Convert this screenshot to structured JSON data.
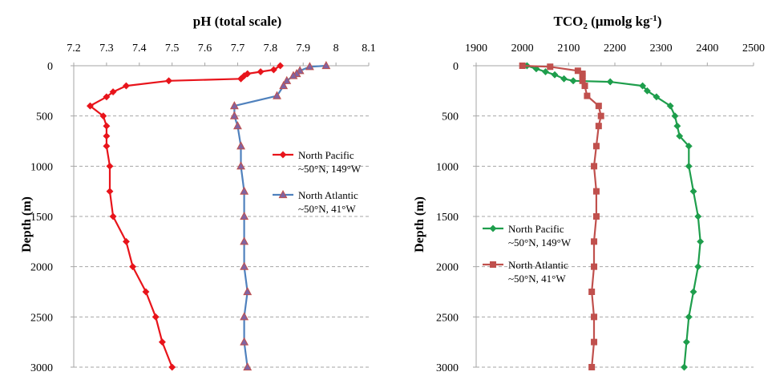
{
  "chart_data": [
    {
      "type": "line",
      "title": "pH (total scale)",
      "ylabel": "Depth (m)",
      "xlim": [
        7.2,
        8.1
      ],
      "xticks": [
        "7.2",
        "7.3",
        "7.4",
        "7.5",
        "7.6",
        "7.7",
        "7.8",
        "7.9",
        "8",
        "8.1"
      ],
      "ylim": [
        0,
        3000
      ],
      "yticks": [
        "0",
        "500",
        "1000",
        "1500",
        "2000",
        "2500",
        "3000"
      ],
      "x_axis_position": "top",
      "y_inverted": true,
      "grid": "horizontal dashed",
      "legend_position": "right-middle",
      "series": [
        {
          "name": "North Pacific",
          "name_line2": "~50°N, 149°W",
          "color": "#e8141b",
          "marker": "diamond",
          "points": [
            [
              7.83,
              0
            ],
            [
              7.81,
              40
            ],
            [
              7.77,
              60
            ],
            [
              7.73,
              80
            ],
            [
              7.72,
              100
            ],
            [
              7.71,
              130
            ],
            [
              7.49,
              150
            ],
            [
              7.36,
              200
            ],
            [
              7.32,
              260
            ],
            [
              7.3,
              310
            ],
            [
              7.25,
              400
            ],
            [
              7.29,
              500
            ],
            [
              7.3,
              600
            ],
            [
              7.3,
              700
            ],
            [
              7.3,
              800
            ],
            [
              7.31,
              1000
            ],
            [
              7.31,
              1250
            ],
            [
              7.32,
              1500
            ],
            [
              7.36,
              1750
            ],
            [
              7.38,
              2000
            ],
            [
              7.42,
              2250
            ],
            [
              7.45,
              2500
            ],
            [
              7.47,
              2750
            ],
            [
              7.5,
              3000
            ]
          ]
        },
        {
          "name": "North Atlantic",
          "name_line2": "~50°N, 41°W",
          "color": "#4f81bd",
          "marker": "triangle",
          "points": [
            [
              7.97,
              0
            ],
            [
              7.92,
              10
            ],
            [
              7.89,
              50
            ],
            [
              7.88,
              80
            ],
            [
              7.87,
              100
            ],
            [
              7.85,
              150
            ],
            [
              7.84,
              200
            ],
            [
              7.82,
              300
            ],
            [
              7.69,
              400
            ],
            [
              7.69,
              500
            ],
            [
              7.7,
              600
            ],
            [
              7.71,
              800
            ],
            [
              7.71,
              1000
            ],
            [
              7.72,
              1250
            ],
            [
              7.72,
              1500
            ],
            [
              7.72,
              1750
            ],
            [
              7.72,
              2000
            ],
            [
              7.73,
              2250
            ],
            [
              7.72,
              2500
            ],
            [
              7.72,
              2750
            ],
            [
              7.73,
              3000
            ]
          ]
        }
      ]
    },
    {
      "type": "line",
      "title": "TCO",
      "title_sub": "2",
      "title_rest": " (µmolg kg",
      "title_sup": "-1",
      "title_end": ")",
      "ylabel": "Depth (m)",
      "xlim": [
        1900,
        2500
      ],
      "xticks": [
        "1900",
        "2000",
        "2100",
        "2200",
        "2300",
        "2400",
        "2500"
      ],
      "ylim": [
        0,
        3000
      ],
      "yticks": [
        "0",
        "500",
        "1000",
        "1500",
        "2000",
        "2500",
        "3000"
      ],
      "x_axis_position": "top",
      "y_inverted": true,
      "grid": "horizontal dashed",
      "legend_position": "left-bottom",
      "series": [
        {
          "name": "North Pacific",
          "name_line2": "~50°N, 149°W",
          "color": "#1e9e4c",
          "marker": "diamond",
          "points": [
            [
              2010,
              0
            ],
            [
              2030,
              30
            ],
            [
              2050,
              60
            ],
            [
              2070,
              90
            ],
            [
              2090,
              130
            ],
            [
              2110,
              150
            ],
            [
              2190,
              160
            ],
            [
              2260,
              200
            ],
            [
              2270,
              250
            ],
            [
              2290,
              310
            ],
            [
              2320,
              400
            ],
            [
              2330,
              500
            ],
            [
              2335,
              600
            ],
            [
              2340,
              700
            ],
            [
              2360,
              800
            ],
            [
              2360,
              1000
            ],
            [
              2370,
              1250
            ],
            [
              2380,
              1500
            ],
            [
              2385,
              1750
            ],
            [
              2380,
              2000
            ],
            [
              2370,
              2250
            ],
            [
              2360,
              2500
            ],
            [
              2355,
              2750
            ],
            [
              2350,
              3000
            ]
          ]
        },
        {
          "name": "North Atlantic",
          "name_line2": "~50°N, 41°W",
          "color": "#c0504d",
          "marker": "square",
          "points": [
            [
              2000,
              0
            ],
            [
              2060,
              10
            ],
            [
              2120,
              50
            ],
            [
              2130,
              80
            ],
            [
              2130,
              100
            ],
            [
              2130,
              150
            ],
            [
              2135,
              200
            ],
            [
              2140,
              300
            ],
            [
              2165,
              400
            ],
            [
              2170,
              500
            ],
            [
              2165,
              600
            ],
            [
              2160,
              800
            ],
            [
              2155,
              1000
            ],
            [
              2160,
              1250
            ],
            [
              2160,
              1500
            ],
            [
              2155,
              1750
            ],
            [
              2155,
              2000
            ],
            [
              2150,
              2250
            ],
            [
              2155,
              2500
            ],
            [
              2155,
              2750
            ],
            [
              2150,
              3000
            ]
          ]
        }
      ]
    }
  ]
}
